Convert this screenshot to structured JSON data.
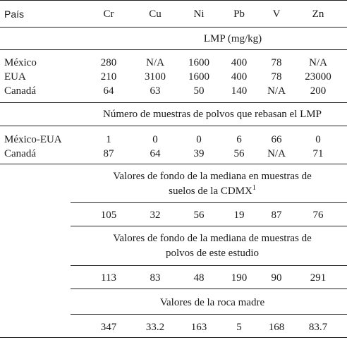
{
  "table": {
    "header": {
      "country_label": "País",
      "elements": [
        "Cr",
        "Cu",
        "Ni",
        "Pb",
        "V",
        "Zn"
      ]
    },
    "lmp_title": "LMP (mg/kg)",
    "lmp_rows": [
      {
        "label": "México",
        "values": [
          "280",
          "N/A",
          "1600",
          "400",
          "78",
          "N/A"
        ]
      },
      {
        "label": "EUA",
        "values": [
          "210",
          "3100",
          "1600",
          "400",
          "78",
          "23000"
        ]
      },
      {
        "label": "Canadá",
        "values": [
          "64",
          "63",
          "50",
          "140",
          "N/A",
          "200"
        ]
      }
    ],
    "exceed_title": "Número de muestras de polvos que rebasan el LMP",
    "exceed_rows": [
      {
        "label": "México-EUA",
        "values": [
          "1",
          "0",
          "0",
          "6",
          "66",
          "0"
        ]
      },
      {
        "label": "Canadá",
        "values": [
          "87",
          "64",
          "39",
          "56",
          "N/A",
          "71"
        ]
      }
    ],
    "soil_title_line1": "Valores de fondo de la mediana en muestras de",
    "soil_title_line2": "suelos de la CDMX",
    "soil_footnote_mark": "1",
    "soil_values": [
      "105",
      "32",
      "56",
      "19",
      "87",
      "76"
    ],
    "dust_title_line1": "Valores de fondo de la mediana de muestras de",
    "dust_title_line2": "polvos de este estudio",
    "dust_values": [
      "113",
      "83",
      "48",
      "190",
      "90",
      "291"
    ],
    "rock_title": "Valores de la roca madre",
    "rock_values": [
      "347",
      "33.2",
      "163",
      "5",
      "168",
      "83.7"
    ]
  }
}
